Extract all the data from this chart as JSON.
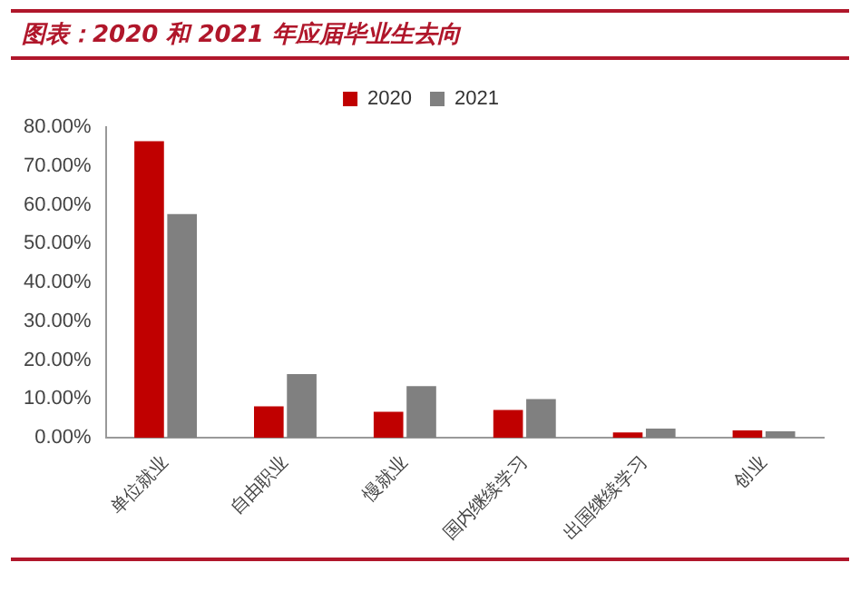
{
  "chart_data": {
    "type": "bar",
    "title": "图表：2020 和 2021 年应届毕业生去向",
    "categories": [
      "单位就业",
      "自由职业",
      "慢就业",
      "国内继续学习",
      "出国继续学习",
      "创业"
    ],
    "series": [
      {
        "name": "2020",
        "color": "#c00000",
        "values": [
          76.4,
          8.1,
          6.7,
          7.2,
          1.4,
          1.9
        ]
      },
      {
        "name": "2021",
        "color": "#808080",
        "values": [
          57.6,
          16.4,
          13.3,
          10.0,
          2.4,
          1.7
        ]
      }
    ],
    "ylim": [
      0,
      80
    ],
    "yticks": [
      {
        "value": 0,
        "label": "0.00%"
      },
      {
        "value": 10,
        "label": "10.00%"
      },
      {
        "value": 20,
        "label": "20.00%"
      },
      {
        "value": 30,
        "label": "30.00%"
      },
      {
        "value": 40,
        "label": "40.00%"
      },
      {
        "value": 50,
        "label": "50.00%"
      },
      {
        "value": 60,
        "label": "60.00%"
      },
      {
        "value": 70,
        "label": "70.00%"
      },
      {
        "value": 80,
        "label": "80.00%"
      }
    ],
    "grid": false,
    "legend": "top"
  }
}
